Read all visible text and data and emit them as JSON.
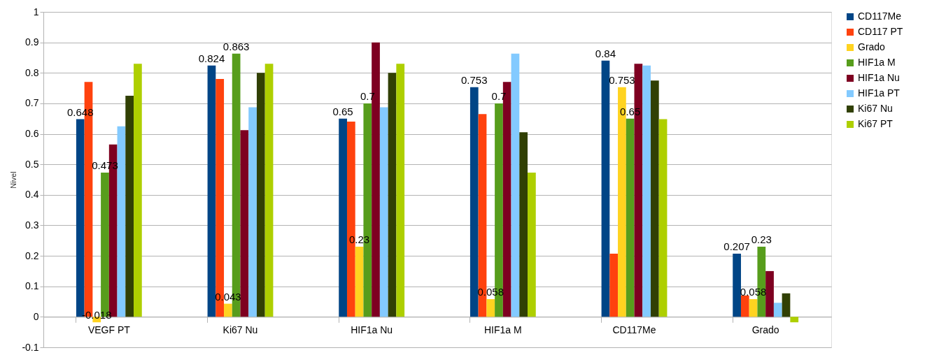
{
  "chart_data": {
    "type": "bar",
    "ylabel": "Nivel",
    "categories": [
      "VEGF  PT",
      "Ki67 Nu",
      "HIF1a Nu",
      "HIF1a M",
      "CD117Me",
      "Grado"
    ],
    "series": [
      {
        "name": "CD117Me",
        "color": "#004586",
        "values": [
          0.648,
          0.824,
          0.65,
          0.753,
          0.84,
          0.207
        ],
        "value_labels": [
          "0.648",
          "0.824",
          "0.65",
          "0.753",
          "0.84",
          "0.207"
        ]
      },
      {
        "name": "CD117 PT",
        "color": "#ff420e",
        "values": [
          0.77,
          0.78,
          0.64,
          0.665,
          0.207,
          0.07
        ]
      },
      {
        "name": "Grado",
        "color": "#ffd320",
        "values": [
          -0.018,
          0.043,
          0.23,
          0.058,
          0.753,
          0.058
        ],
        "value_labels": [
          "-0.018",
          "0.043",
          "0.23",
          "0.058",
          "0.753",
          "0.058"
        ]
      },
      {
        "name": "HIF1a M",
        "color": "#579d1c",
        "values": [
          0.473,
          0.863,
          0.7,
          0.7,
          0.65,
          0.23
        ],
        "value_labels": [
          "0.473",
          "0.863",
          "0.7",
          "0.7",
          "0.65",
          "0.23"
        ]
      },
      {
        "name": "HIF1a Nu",
        "color": "#7e0021",
        "values": [
          0.565,
          0.612,
          0.9,
          0.77,
          0.83,
          0.15
        ]
      },
      {
        "name": "HIF1a PT",
        "color": "#83caff",
        "values": [
          0.625,
          0.687,
          0.687,
          0.863,
          0.824,
          0.046
        ]
      },
      {
        "name": "Ki67 Nu",
        "color": "#314004",
        "values": [
          0.725,
          0.8,
          0.8,
          0.605,
          0.775,
          0.077
        ]
      },
      {
        "name": "Ki67 PT",
        "color": "#aecf00",
        "values": [
          0.83,
          0.83,
          0.83,
          0.473,
          0.648,
          -0.018
        ]
      }
    ],
    "ylim": [
      -0.1,
      1
    ],
    "yticks": [
      -0.1,
      0,
      0.1,
      0.2,
      0.3,
      0.4,
      0.5,
      0.6,
      0.7,
      0.8,
      0.9,
      1
    ],
    "grid": "y",
    "legend": "right"
  }
}
